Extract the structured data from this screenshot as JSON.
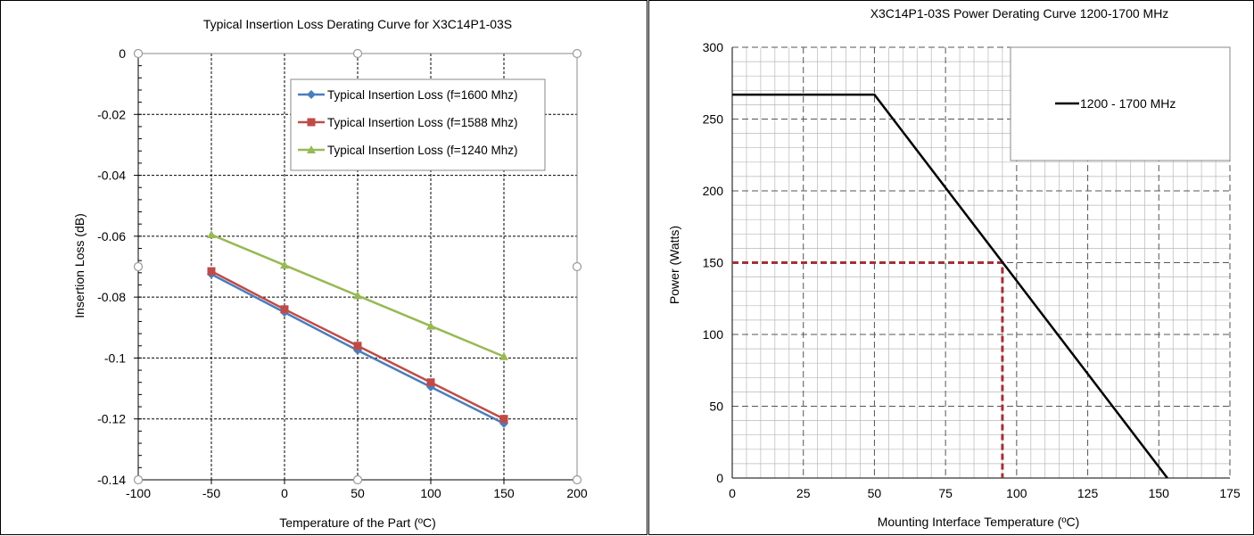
{
  "chart_data": [
    {
      "type": "line",
      "title": "Typical Insertion Loss Derating Curve for X3C14P1-03S",
      "xlabel": "Temperature of the Part (ºC)",
      "ylabel": "Insertion Loss (dB)",
      "xlim": [
        -100,
        200
      ],
      "ylim": [
        -0.14,
        0
      ],
      "x_ticks": [
        -100,
        -50,
        0,
        50,
        100,
        150,
        200
      ],
      "x_tick_labels": [
        "-100",
        "-50",
        "0",
        "50",
        "100",
        "150",
        "200"
      ],
      "y_ticks": [
        0,
        -0.02,
        -0.04,
        -0.06,
        -0.08,
        -0.1,
        -0.12,
        -0.14
      ],
      "y_tick_labels": [
        "0",
        "-0.02",
        "-0.04",
        "-0.06",
        "-0.08",
        "-0.1",
        "-0.12",
        "-0.14"
      ],
      "grid": true,
      "legend_position": "top-right",
      "x": [
        -50,
        0,
        50,
        100,
        150
      ],
      "series": [
        {
          "name": "Typical Insertion Loss (f=1600 Mhz)",
          "color": "#4a7ebb",
          "marker": "diamond",
          "values": [
            -0.0725,
            -0.085,
            -0.0975,
            -0.1095,
            -0.1215
          ]
        },
        {
          "name": "Typical Insertion Loss (f=1588 Mhz)",
          "color": "#be4b48",
          "marker": "square",
          "values": [
            -0.0715,
            -0.084,
            -0.096,
            -0.108,
            -0.12
          ]
        },
        {
          "name": "Typical Insertion Loss (f=1240 Mhz)",
          "color": "#98b954",
          "marker": "triangle",
          "values": [
            -0.0595,
            -0.0695,
            -0.0795,
            -0.0895,
            -0.0995
          ]
        }
      ]
    },
    {
      "type": "line",
      "title": "X3C14P1-03S Power Derating Curve 1200-1700 MHz",
      "xlabel": "Mounting Interface Temperature (ºC)",
      "ylabel": "Power (Watts)",
      "xlim": [
        0,
        175
      ],
      "ylim": [
        0,
        300
      ],
      "x_ticks": [
        0,
        25,
        50,
        75,
        100,
        125,
        150,
        175
      ],
      "x_tick_labels": [
        "0",
        "25",
        "50",
        "75",
        "100",
        "125",
        "150",
        "175"
      ],
      "y_ticks": [
        0,
        50,
        100,
        150,
        200,
        250,
        300
      ],
      "y_tick_labels": [
        "0",
        "50",
        "100",
        "150",
        "200",
        "250",
        "300"
      ],
      "grid": true,
      "minor_grid": true,
      "legend_position": "top-right",
      "series": [
        {
          "name": "1200 - 1700 MHz",
          "color": "#000000",
          "x": [
            0,
            50,
            153
          ],
          "values": [
            267,
            267,
            0
          ]
        }
      ],
      "reference_lines": [
        {
          "color": "#a3303a",
          "style": "dashed",
          "x": [
            0,
            95,
            95
          ],
          "values": [
            150,
            150,
            0
          ]
        }
      ]
    }
  ]
}
